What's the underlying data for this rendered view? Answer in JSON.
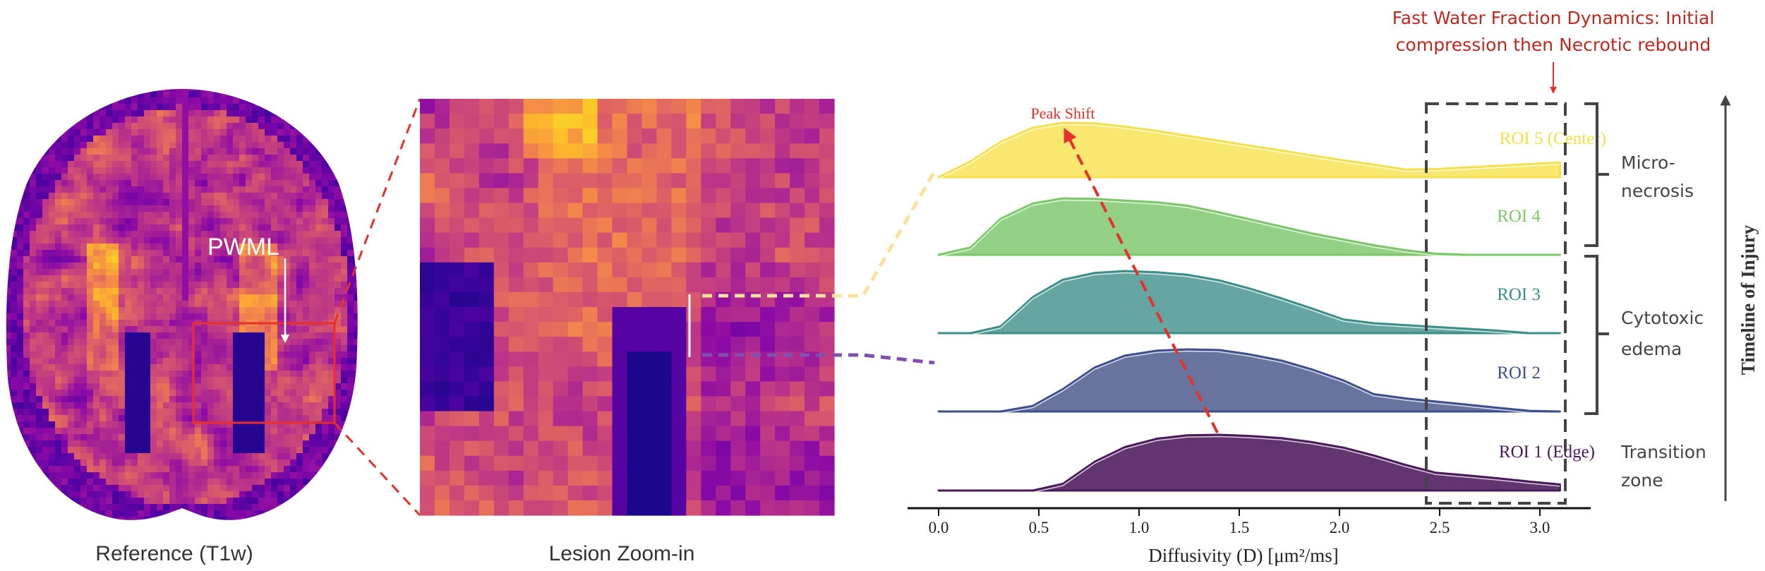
{
  "panels": {
    "reference_label": "Reference (T1w)",
    "zoom_label": "Lesion Zoom-in",
    "lesion_label": "PWML"
  },
  "annotations": {
    "title_line1": "Fast Water Fraction Dynamics: Initial",
    "title_line2": "compression then Necrotic rebound",
    "peak_shift": "Peak Shift",
    "timeline": "Timeline of Injury",
    "stages": [
      {
        "line1": "Micro-",
        "line2": "necrosis"
      },
      {
        "line1": "Cytotoxic",
        "line2": "edema"
      },
      {
        "line1": "Transition",
        "line2": "zone"
      }
    ],
    "colors": {
      "annotation_red": "#c0281e",
      "arrow_red": "#e8302a",
      "box": "#444444"
    }
  },
  "chart_data": {
    "type": "area",
    "style": "ridgeline",
    "title": "",
    "xlabel": "Diffusivity (D) [μm²/ms]",
    "ylabel": "",
    "xlim": [
      -0.15,
      3.2
    ],
    "xticks": [
      "0.0",
      "0.5",
      "1.0",
      "1.5",
      "2.0",
      "2.5",
      "3.0"
    ],
    "grid": false,
    "highlight_range": [
      2.43,
      3.13
    ],
    "x": [
      0,
      0.16,
      0.31,
      0.47,
      0.62,
      0.78,
      0.93,
      1.09,
      1.24,
      1.4,
      1.55,
      1.71,
      1.86,
      2.02,
      2.17,
      2.33,
      2.48,
      2.64,
      2.79,
      2.95,
      3.1
    ],
    "series": [
      {
        "name": "ROI 1 (Edge)",
        "color": "#623570",
        "label_color": "#4b1a5c",
        "values": [
          0,
          0,
          0,
          0,
          0.12,
          0.52,
          0.78,
          0.93,
          0.99,
          1.0,
          0.98,
          0.94,
          0.87,
          0.77,
          0.63,
          0.46,
          0.32,
          0.27,
          0.22,
          0.16,
          0.11
        ]
      },
      {
        "name": "ROI 2",
        "color": "#66749e",
        "label_color": "#3e4f8f",
        "values": [
          0,
          0,
          0,
          0.09,
          0.36,
          0.71,
          0.9,
          0.98,
          1.0,
          0.99,
          0.92,
          0.82,
          0.68,
          0.5,
          0.28,
          0.21,
          0.16,
          0.11,
          0.06,
          0.01,
          0
        ]
      },
      {
        "name": "ROI 3",
        "color": "#66a6a2",
        "label_color": "#3b8f8a",
        "values": [
          0,
          0,
          0.11,
          0.58,
          0.86,
          0.97,
          1.0,
          0.98,
          0.94,
          0.85,
          0.72,
          0.56,
          0.4,
          0.22,
          0.16,
          0.13,
          0.1,
          0.07,
          0.04,
          0,
          0
        ]
      },
      {
        "name": "ROI 4",
        "color": "#93d186",
        "label_color": "#7cc76a",
        "values": [
          0,
          0.13,
          0.64,
          0.91,
          1.0,
          0.99,
          0.96,
          0.93,
          0.87,
          0.75,
          0.63,
          0.5,
          0.38,
          0.27,
          0.17,
          0.08,
          0.02,
          0,
          0,
          0,
          0
        ]
      },
      {
        "name": "ROI 5 (Center)",
        "color": "#f9e86f",
        "label_color": "#f4e04d",
        "values": [
          0,
          0.29,
          0.65,
          0.91,
          1.0,
          0.99,
          0.93,
          0.85,
          0.76,
          0.67,
          0.58,
          0.49,
          0.4,
          0.31,
          0.23,
          0.14,
          0.15,
          0.18,
          0.21,
          0.24,
          0.27
        ]
      }
    ]
  }
}
